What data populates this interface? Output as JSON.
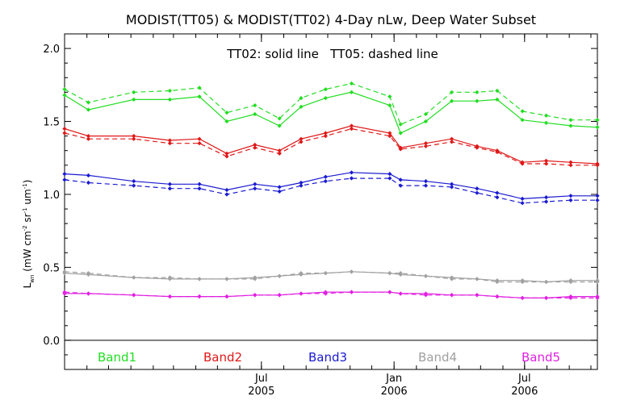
{
  "chart_data": {
    "type": "line",
    "title": "MODIST(TT05) & MODIST(TT02) 4-Day nLw, Deep Water Subset",
    "annotation": "TT02: solid line   TT05: dashed line",
    "ylabel_main": "L",
    "ylabel_sub": "wn",
    "ylabel_rest": " (mW cm",
    "ylabel_sup1": "-2",
    "ylabel_mid": " sr",
    "ylabel_sup2": "-1",
    "ylabel_mid2": " um",
    "ylabel_sup3": "-1",
    "ylabel_end": ")",
    "ylim": [
      -0.2,
      2.1
    ],
    "y_ticks": [
      {
        "value": 0.0,
        "label": "0.0"
      },
      {
        "value": 0.5,
        "label": "0.5"
      },
      {
        "value": 1.0,
        "label": "1.0"
      },
      {
        "value": 1.5,
        "label": "1.5"
      },
      {
        "value": 2.0,
        "label": "2.0"
      }
    ],
    "xlim": [
      "2004-10-01",
      "2006-10-10"
    ],
    "x_ticks": [
      {
        "date": "2005-07-01",
        "label": "Jul",
        "year": "2005"
      },
      {
        "date": "2006-01-01",
        "label": "Jan",
        "year": "2006"
      },
      {
        "date": "2006-07-01",
        "label": "Jul",
        "year": "2006"
      }
    ],
    "x_dates": [
      "2004-10-01",
      "2004-11-03",
      "2005-01-05",
      "2005-02-24",
      "2005-04-06",
      "2005-05-14",
      "2005-06-22",
      "2005-07-26",
      "2005-08-25",
      "2005-09-28",
      "2005-11-03",
      "2005-12-26",
      "2006-01-10",
      "2006-02-14",
      "2006-03-22",
      "2006-04-26",
      "2006-05-24",
      "2006-06-28",
      "2006-07-31",
      "2006-09-03",
      "2006-10-10"
    ],
    "series": [
      {
        "name": "Band1",
        "color": "#22dd22",
        "solid": [
          1.68,
          1.58,
          1.65,
          1.65,
          1.67,
          1.5,
          1.55,
          1.47,
          1.6,
          1.66,
          1.7,
          1.61,
          1.42,
          1.5,
          1.64,
          1.64,
          1.65,
          1.51,
          1.49,
          1.47,
          1.46
        ],
        "dashed": [
          1.72,
          1.63,
          1.7,
          1.71,
          1.73,
          1.56,
          1.61,
          1.52,
          1.66,
          1.72,
          1.76,
          1.67,
          1.48,
          1.55,
          1.7,
          1.7,
          1.71,
          1.57,
          1.54,
          1.51,
          1.51
        ]
      },
      {
        "name": "Band2",
        "color": "#e01818",
        "solid": [
          1.45,
          1.4,
          1.4,
          1.37,
          1.38,
          1.28,
          1.34,
          1.3,
          1.38,
          1.42,
          1.47,
          1.42,
          1.32,
          1.35,
          1.38,
          1.33,
          1.3,
          1.22,
          1.23,
          1.22,
          1.21
        ],
        "dashed": [
          1.42,
          1.38,
          1.38,
          1.35,
          1.35,
          1.26,
          1.32,
          1.28,
          1.36,
          1.4,
          1.45,
          1.4,
          1.31,
          1.33,
          1.36,
          1.32,
          1.29,
          1.21,
          1.21,
          1.2,
          1.2
        ]
      },
      {
        "name": "Band3",
        "color": "#1a1ad0",
        "solid": [
          1.14,
          1.13,
          1.09,
          1.07,
          1.07,
          1.03,
          1.07,
          1.05,
          1.08,
          1.12,
          1.15,
          1.14,
          1.1,
          1.09,
          1.07,
          1.04,
          1.01,
          0.97,
          0.98,
          0.99,
          0.99
        ],
        "dashed": [
          1.1,
          1.08,
          1.06,
          1.04,
          1.04,
          1.0,
          1.04,
          1.02,
          1.06,
          1.09,
          1.11,
          1.11,
          1.06,
          1.06,
          1.05,
          1.01,
          0.98,
          0.94,
          0.95,
          0.96,
          0.96
        ]
      },
      {
        "name": "Band4",
        "color": "#a0a0a0",
        "solid": [
          0.46,
          0.45,
          0.43,
          0.42,
          0.42,
          0.42,
          0.43,
          0.44,
          0.45,
          0.46,
          0.47,
          0.46,
          0.45,
          0.44,
          0.43,
          0.42,
          0.41,
          0.41,
          0.4,
          0.41,
          0.41
        ],
        "dashed": [
          0.47,
          0.46,
          0.43,
          0.43,
          0.42,
          0.42,
          0.42,
          0.44,
          0.46,
          0.46,
          0.47,
          0.46,
          0.46,
          0.44,
          0.42,
          0.42,
          0.4,
          0.4,
          0.4,
          0.4,
          0.4
        ]
      },
      {
        "name": "Band5",
        "color": "#e020e0",
        "solid": [
          0.32,
          0.32,
          0.31,
          0.3,
          0.3,
          0.3,
          0.31,
          0.31,
          0.32,
          0.33,
          0.33,
          0.33,
          0.32,
          0.32,
          0.31,
          0.31,
          0.3,
          0.29,
          0.29,
          0.3,
          0.3
        ],
        "dashed": [
          0.33,
          0.32,
          0.31,
          0.3,
          0.3,
          0.3,
          0.31,
          0.31,
          0.32,
          0.32,
          0.33,
          0.33,
          0.32,
          0.31,
          0.31,
          0.31,
          0.3,
          0.29,
          0.29,
          0.29,
          0.29
        ]
      }
    ],
    "grid": false,
    "legend_placement": "bottom, inside plot below zero line"
  }
}
